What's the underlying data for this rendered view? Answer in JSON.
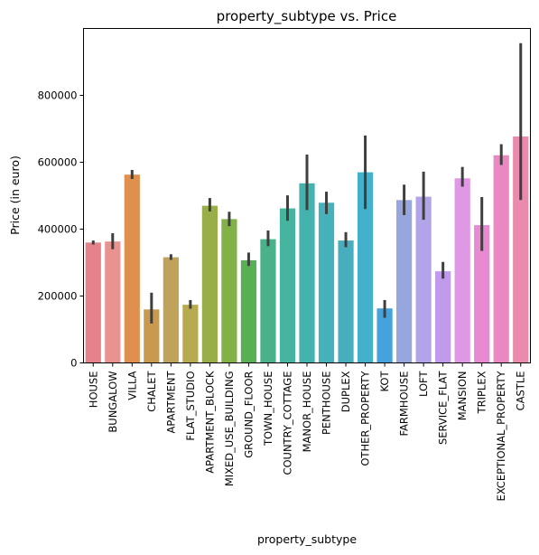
{
  "chart_data": {
    "type": "bar",
    "title": "property_subtype vs. Price",
    "xlabel": "property_subtype",
    "ylabel": "Price (in euro)",
    "ylim": [
      0,
      1000000
    ],
    "yticks": [
      0,
      200000,
      400000,
      600000,
      800000
    ],
    "ytick_labels": [
      "0",
      "200000",
      "400000",
      "600000",
      "800000"
    ],
    "grid": false,
    "categories": [
      "HOUSE",
      "BUNGALOW",
      "VILLA",
      "CHALET",
      "APARTMENT",
      "FLAT_STUDIO",
      "APARTMENT_BLOCK",
      "MIXED_USE_BUILDING",
      "GROUND_FLOOR",
      "TOWN_HOUSE",
      "COUNTRY_COTTAGE",
      "MANOR_HOUSE",
      "PENTHOUSE",
      "DUPLEX",
      "OTHER_PROPERTY",
      "KOT",
      "FARMHOUSE",
      "LOFT",
      "SERVICE_FLAT",
      "MANSION",
      "TRIPLEX",
      "EXCEPTIONAL_PROPERTY",
      "CASTLE"
    ],
    "values": [
      360000,
      363000,
      563000,
      160000,
      316000,
      174000,
      470000,
      430000,
      307000,
      370000,
      462000,
      537000,
      479000,
      366000,
      570000,
      163000,
      487000,
      497000,
      274000,
      552000,
      412000,
      621000,
      677000
    ],
    "error_low": [
      354000,
      340000,
      550000,
      118000,
      308000,
      162000,
      453000,
      409000,
      290000,
      349000,
      425000,
      457000,
      445000,
      346000,
      460000,
      135000,
      442000,
      428000,
      252000,
      527000,
      335000,
      592000,
      487000
    ],
    "error_high": [
      366000,
      388000,
      577000,
      210000,
      325000,
      188000,
      493000,
      452000,
      330000,
      396000,
      501000,
      623000,
      512000,
      391000,
      680000,
      188000,
      533000,
      572000,
      302000,
      586000,
      496000,
      654000,
      956000
    ],
    "colors": [
      "#e8828a",
      "#e89390",
      "#e0904e",
      "#c8994e",
      "#c0a35a",
      "#b7aa50",
      "#99ad48",
      "#82b148",
      "#58b055",
      "#4ab28b",
      "#46b49e",
      "#45b3ad",
      "#46b0bb",
      "#48aebe",
      "#44b1cc",
      "#46a2dc",
      "#98a6e0",
      "#b3a4ea",
      "#c19aec",
      "#de98e4",
      "#e78ad2",
      "#ea89c1",
      "#ea8aac"
    ]
  }
}
